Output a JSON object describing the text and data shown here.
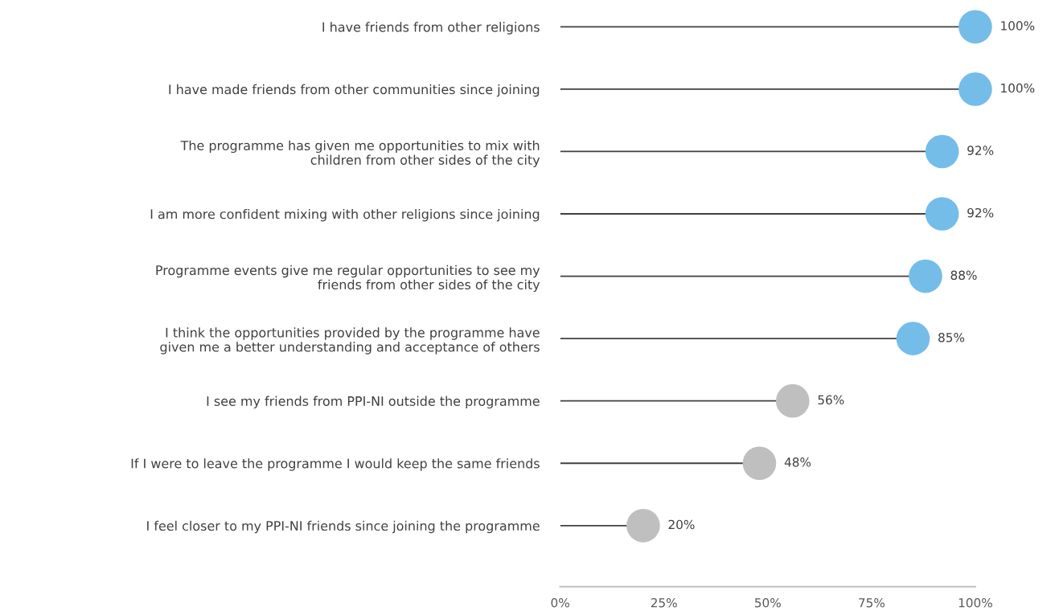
{
  "chart_data": {
    "type": "lollipop",
    "orientation": "horizontal",
    "categories": [
      "I have friends from other religions",
      "I have made friends from other communities since joining",
      "The programme has given me opportunities to mix with\nchildren from other sides of the city",
      "I am more confident mixing with other religions since joining",
      "Programme events give me regular opportunities to see my\nfriends from other sides of the city",
      "I think the opportunities provided by the programme have\ngiven me a better understanding and acceptance of others",
      "I see my friends from PPI-NI outside the programme",
      "If I were to leave the programme I would keep the same friends",
      "I feel closer to my PPI-NI friends since joining the programme"
    ],
    "values": [
      100,
      100,
      92,
      92,
      88,
      85,
      56,
      48,
      20
    ],
    "value_labels": [
      "100%",
      "100%",
      "92%",
      "92%",
      "88%",
      "85%",
      "56%",
      "48%",
      "20%"
    ],
    "colors": [
      "#74bde8",
      "#74bde8",
      "#74bde8",
      "#74bde8",
      "#74bde8",
      "#74bde8",
      "#bfbfbf",
      "#bfbfbf",
      "#bfbfbf"
    ],
    "xlim": [
      0,
      100
    ],
    "xticks": [
      {
        "value": 0,
        "label": "0%"
      },
      {
        "value": 25,
        "label": "25%"
      },
      {
        "value": 50,
        "label": "50%"
      },
      {
        "value": 75,
        "label": "75%"
      },
      {
        "value": 100,
        "label": "100%"
      }
    ],
    "grid": false,
    "legend": false,
    "marker": "circle"
  }
}
